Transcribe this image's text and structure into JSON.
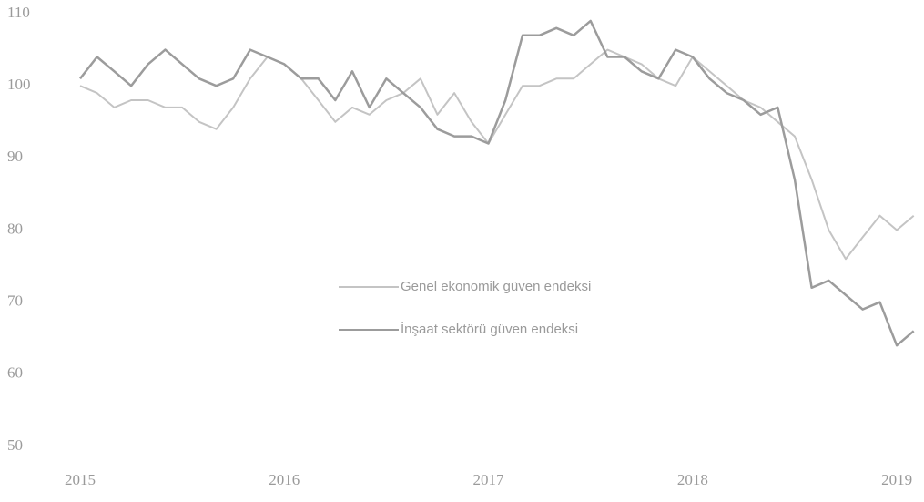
{
  "chart_data": {
    "type": "line",
    "x": [
      2015,
      2015.083,
      2015.167,
      2015.25,
      2015.333,
      2015.417,
      2015.5,
      2015.583,
      2015.667,
      2015.75,
      2015.833,
      2015.917,
      2016,
      2016.083,
      2016.167,
      2016.25,
      2016.333,
      2016.417,
      2016.5,
      2016.583,
      2016.667,
      2016.75,
      2016.833,
      2016.917,
      2017,
      2017.083,
      2017.167,
      2017.25,
      2017.333,
      2017.417,
      2017.5,
      2017.583,
      2017.667,
      2017.75,
      2017.833,
      2017.917,
      2018,
      2018.083,
      2018.167,
      2018.25,
      2018.333,
      2018.417,
      2018.5,
      2018.583,
      2018.667,
      2018.75,
      2018.833,
      2018.917,
      2019,
      2019.083
    ],
    "series": [
      {
        "name": "Genel ekonomik güven endeksi",
        "color": "#c4c4c4",
        "values": [
          100,
          99,
          97,
          98,
          98,
          97,
          97,
          95,
          94,
          97,
          101,
          104,
          103,
          101,
          98,
          95,
          97,
          96,
          98,
          99,
          101,
          96,
          99,
          95,
          92,
          96,
          100,
          100,
          101,
          101,
          103,
          105,
          104,
          103,
          101,
          100,
          104,
          102,
          100,
          98,
          97,
          95,
          93,
          87,
          80,
          76,
          79,
          82,
          80,
          82
        ]
      },
      {
        "name": "İnşaat sektörü güven endeksi",
        "color": "#9c9c9c",
        "values": [
          101,
          104,
          102,
          100,
          103,
          105,
          103,
          101,
          100,
          101,
          105,
          104,
          103,
          101,
          101,
          98,
          102,
          97,
          101,
          99,
          97,
          94,
          93,
          93,
          92,
          98,
          107,
          107,
          108,
          107,
          109,
          104,
          104,
          102,
          101,
          105,
          104,
          101,
          99,
          98,
          96,
          97,
          87,
          72,
          73,
          71,
          69,
          70,
          64,
          66
        ]
      }
    ],
    "xlim": [
      2015,
      2019.12
    ],
    "xticks": [
      2015,
      2016,
      2017,
      2018,
      2019
    ],
    "ylim": [
      50,
      110
    ],
    "yticks": [
      50,
      60,
      70,
      80,
      90,
      100,
      110
    ],
    "grid": false
  }
}
